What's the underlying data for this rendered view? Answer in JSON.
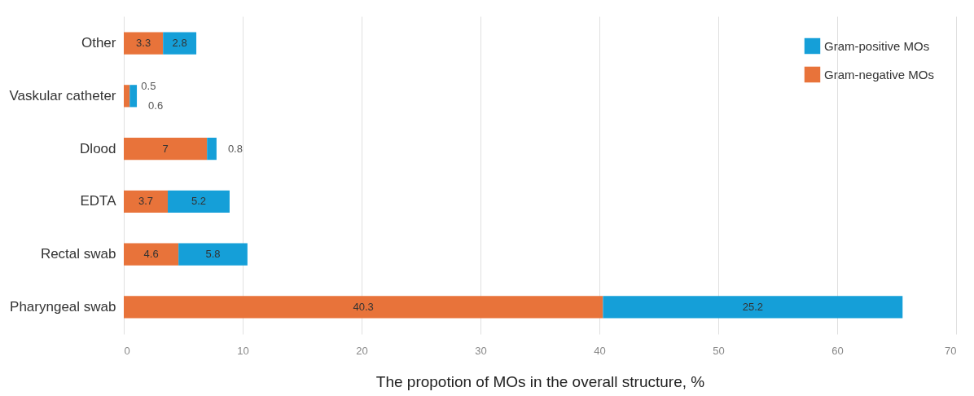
{
  "chart_data": {
    "type": "bar",
    "orientation": "horizontal",
    "stacked": true,
    "xlabel": "The propotion of MOs in the overall structure, %",
    "categories": [
      "Other",
      "Vaskular catheter",
      "Dlood",
      "EDTA",
      "Rectal swab",
      "Pharyngeal swab"
    ],
    "series": [
      {
        "name": "Gram-negative MOs",
        "color": "#e8733a",
        "values": [
          3.3,
          0.5,
          7,
          3.7,
          4.6,
          40.3
        ]
      },
      {
        "name": "Gram-positive MOs",
        "color": "#159fd8",
        "values": [
          2.8,
          0.6,
          0.8,
          5.2,
          5.8,
          25.2
        ]
      }
    ],
    "xlim": [
      0,
      70
    ],
    "xticks": [
      0,
      10,
      20,
      30,
      40,
      50,
      60,
      70
    ],
    "grid": "x",
    "legend": "top right",
    "data_labels": true
  }
}
